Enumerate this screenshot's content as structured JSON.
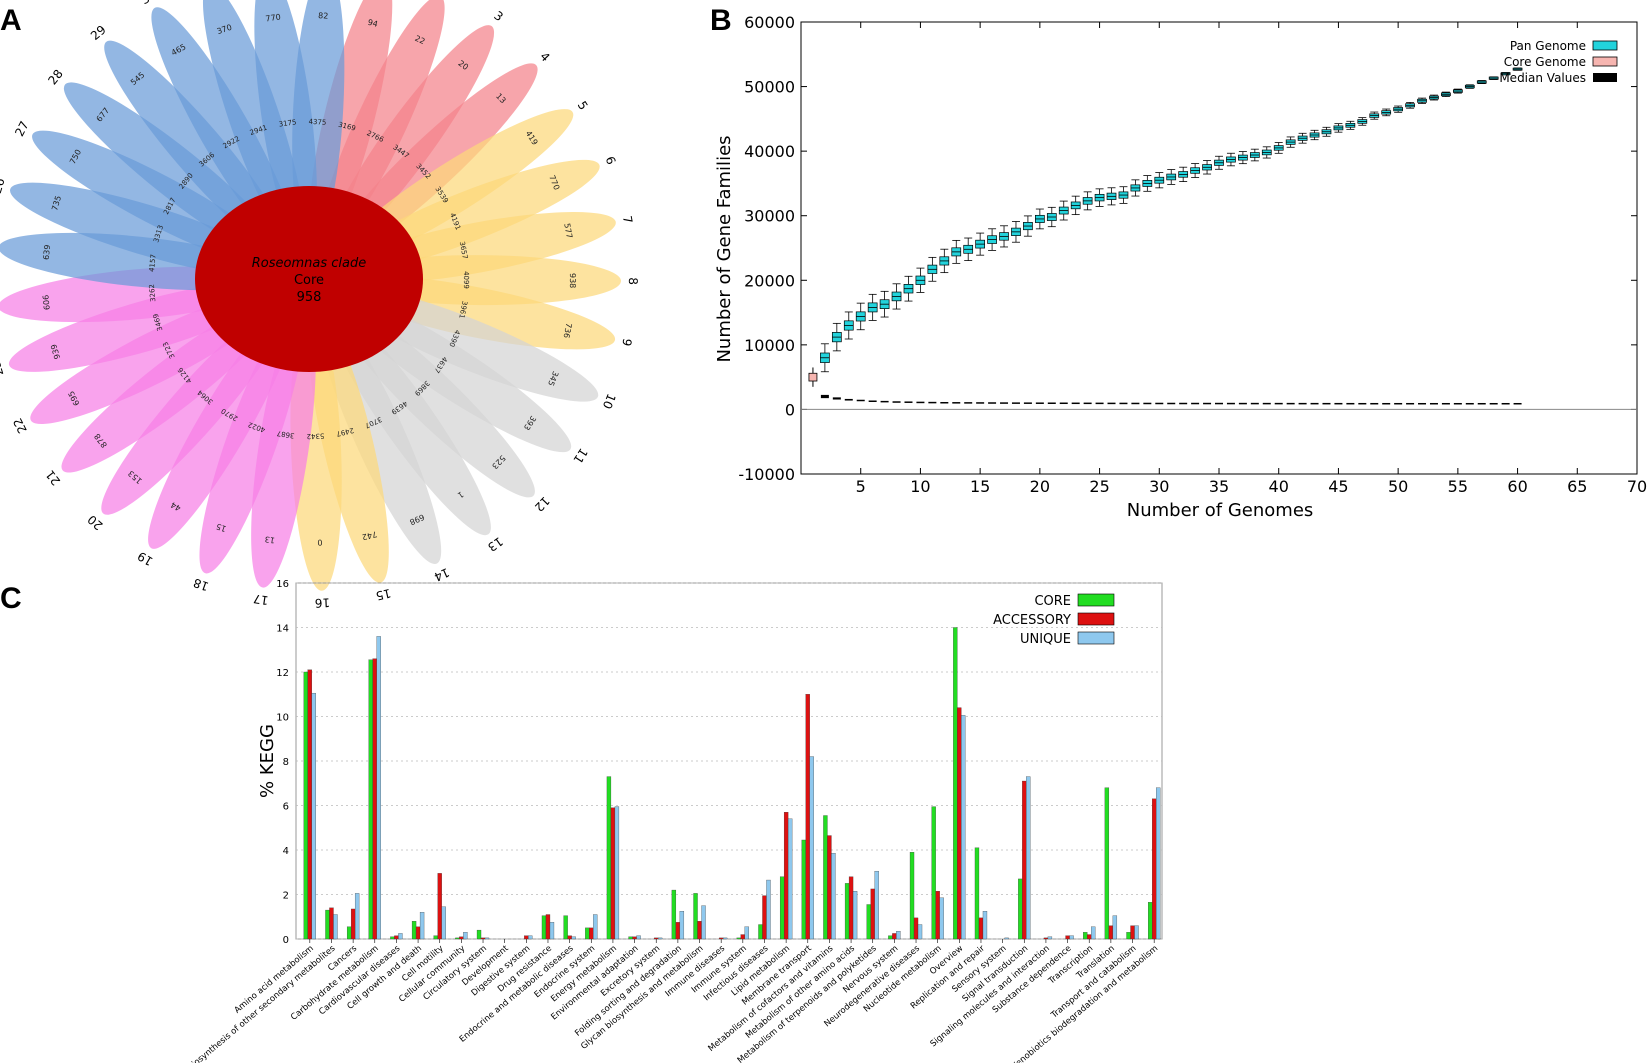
{
  "panel_labels": {
    "a": "A",
    "b": "B",
    "c": "C"
  },
  "colors": {
    "blue": "#6a9bd8",
    "pink": "#f77fe6",
    "yellow": "#fcd87a",
    "gray": "#d4d4d4",
    "salmon": "#f4828a",
    "core_red": "#c00000",
    "pan": "#22d3dc",
    "core_genome": "#f6b5b0",
    "median": "#000000",
    "bar_core": "#22dd22",
    "bar_accessory": "#dd1111",
    "bar_unique": "#8ec8ee"
  },
  "chart_data": [
    {
      "type": "flower",
      "center": {
        "line1": "Roseomnas clade",
        "line2": "Core",
        "line3": "958"
      },
      "petals": [
        {
          "id": "1",
          "unique": "94",
          "accessory": "3169",
          "color": "salmon"
        },
        {
          "id": "2",
          "unique": "22",
          "accessory": "2766",
          "color": "salmon"
        },
        {
          "id": "3",
          "unique": "20",
          "accessory": "3447",
          "color": "salmon"
        },
        {
          "id": "4",
          "unique": "13",
          "accessory": "3452",
          "color": "salmon"
        },
        {
          "id": "5",
          "unique": "419",
          "accessory": "3539",
          "color": "yellow"
        },
        {
          "id": "6",
          "unique": "770",
          "accessory": "4191",
          "color": "yellow"
        },
        {
          "id": "7",
          "unique": "577",
          "accessory": "3657",
          "color": "yellow"
        },
        {
          "id": "8",
          "unique": "938",
          "accessory": "4099",
          "color": "yellow"
        },
        {
          "id": "9",
          "unique": "736",
          "accessory": "3961",
          "color": "yellow"
        },
        {
          "id": "10",
          "unique": "345",
          "accessory": "4390",
          "color": "gray"
        },
        {
          "id": "11",
          "unique": "393",
          "accessory": "4637",
          "color": "gray"
        },
        {
          "id": "12",
          "unique": "523",
          "accessory": "3869",
          "color": "gray"
        },
        {
          "id": "13",
          "unique": "1",
          "accessory": "4639",
          "color": "gray"
        },
        {
          "id": "14",
          "unique": "698",
          "accessory": "3707",
          "color": "gray"
        },
        {
          "id": "15",
          "unique": "742",
          "accessory": "2497",
          "color": "yellow"
        },
        {
          "id": "16",
          "unique": "0",
          "accessory": "5342",
          "color": "yellow"
        },
        {
          "id": "17",
          "unique": "13",
          "accessory": "3687",
          "color": "pink"
        },
        {
          "id": "18",
          "unique": "15",
          "accessory": "4022",
          "color": "pink"
        },
        {
          "id": "19",
          "unique": "44",
          "accessory": "2970",
          "color": "pink"
        },
        {
          "id": "20",
          "unique": "153",
          "accessory": "3064",
          "color": "pink"
        },
        {
          "id": "21",
          "unique": "878",
          "accessory": "4126",
          "color": "pink"
        },
        {
          "id": "22",
          "unique": "695",
          "accessory": "3723",
          "color": "pink"
        },
        {
          "id": "23",
          "unique": "939",
          "accessory": "3469",
          "color": "pink"
        },
        {
          "id": "24",
          "unique": "606",
          "accessory": "3262",
          "color": "pink"
        },
        {
          "id": "25",
          "unique": "639",
          "accessory": "4157",
          "color": "blue"
        },
        {
          "id": "26",
          "unique": "735",
          "accessory": "3313",
          "color": "blue"
        },
        {
          "id": "27",
          "unique": "750",
          "accessory": "2817",
          "color": "blue"
        },
        {
          "id": "28",
          "unique": "677",
          "accessory": "2890",
          "color": "blue"
        },
        {
          "id": "29",
          "unique": "545",
          "accessory": "3606",
          "color": "blue"
        },
        {
          "id": "30",
          "unique": "465",
          "accessory": "2922",
          "color": "blue"
        },
        {
          "id": "31",
          "unique": "370",
          "accessory": "2941",
          "color": "blue"
        },
        {
          "id": "32",
          "unique": "770",
          "accessory": "3175",
          "color": "blue"
        },
        {
          "id": "33",
          "unique": "82",
          "accessory": "4375",
          "color": "blue"
        }
      ]
    },
    {
      "type": "boxplot",
      "xlabel": "Number of Genomes",
      "ylabel": "Number of Gene Families",
      "xlim": [
        0,
        70
      ],
      "ylim": [
        -10000,
        60000
      ],
      "xticks": [
        "5",
        "10",
        "15",
        "20",
        "25",
        "30",
        "35",
        "40",
        "45",
        "50",
        "55",
        "60",
        "65",
        "70"
      ],
      "yticks": [
        "60000",
        "50000",
        "40000",
        "30000",
        "20000",
        "10000",
        "0",
        "-10000"
      ],
      "legend": [
        "Pan Genome",
        "Core Genome",
        "Median Values"
      ],
      "x": [
        1,
        2,
        3,
        4,
        5,
        6,
        7,
        8,
        9,
        10,
        11,
        12,
        13,
        14,
        15,
        16,
        17,
        18,
        19,
        20,
        21,
        22,
        23,
        24,
        25,
        26,
        27,
        28,
        29,
        30,
        31,
        32,
        33,
        34,
        35,
        36,
        37,
        38,
        39,
        40,
        41,
        42,
        43,
        44,
        45,
        46,
        47,
        48,
        49,
        50,
        51,
        52,
        53,
        54,
        55,
        56,
        57,
        58,
        59,
        60
      ],
      "pan_median": [
        5000,
        8000,
        11200,
        13000,
        14400,
        15800,
        16300,
        17500,
        18700,
        20000,
        21700,
        23000,
        24400,
        24800,
        25600,
        26300,
        26800,
        27500,
        28400,
        29500,
        29800,
        30800,
        31600,
        32300,
        32800,
        33000,
        33200,
        34300,
        35000,
        35500,
        36000,
        36400,
        37000,
        37500,
        38200,
        38700,
        39000,
        39400,
        39800,
        40500,
        41400,
        42000,
        42500,
        43000,
        43600,
        44000,
        44600,
        45500,
        46000,
        46500,
        47100,
        47800,
        48300,
        48800,
        49300,
        50000,
        50700,
        51300,
        52000,
        52700
      ],
      "core_median": [
        5000,
        2000,
        1700,
        1500,
        1400,
        1300,
        1250,
        1200,
        1180,
        1150,
        1130,
        1110,
        1100,
        1090,
        1080,
        1070,
        1060,
        1050,
        1045,
        1040,
        1035,
        1030,
        1025,
        1020,
        1015,
        1010,
        1005,
        1000,
        998,
        996,
        994,
        992,
        990,
        988,
        986,
        984,
        982,
        980,
        978,
        976,
        974,
        972,
        970,
        968,
        966,
        964,
        962,
        961,
        960,
        960,
        960,
        959,
        959,
        959,
        958,
        958,
        958,
        958,
        958,
        958
      ]
    },
    {
      "type": "bar",
      "ylabel": "% KEGG",
      "ylim": [
        0,
        16
      ],
      "yticks": [
        "0",
        "2",
        "4",
        "6",
        "8",
        "10",
        "12",
        "14",
        "16"
      ],
      "categories": [
        "Amino acid metabolism",
        "Biosynthesis of other secondary metabolites",
        "Cancers",
        "Carbohydrate metabolism",
        "Cardiovascular diseases",
        "Cell growth and death",
        "Cell motility",
        "Cellular community",
        "Circulatory system",
        "Development",
        "Digestive system",
        "Drug resistance",
        "Endocrine and metabolic diseases",
        "Endocrine system",
        "Energy metabolism",
        "Environmental adaptation",
        "Excretory system",
        "Folding sorting and degradation",
        "Glycan biosynthesis and metabolism",
        "Immune diseases",
        "Immune system",
        "Infectious diseases",
        "Lipid metabolism",
        "Membrane transport",
        "Metabolism of cofactors and vitamins",
        "Metabolism of other amino acids",
        "Metabolism of terpenoids and polyketides",
        "Nervous system",
        "Neurodegenerative diseases",
        "Nucleotide metabolism",
        "Overview",
        "Replication and repair",
        "Sensory system",
        "Signal transduction",
        "Signaling molecules and interaction",
        "Substance dependence",
        "Transcription",
        "Translation",
        "Transport and catabolism",
        "Xenobiotics biodegradation and metabolism"
      ],
      "series": [
        {
          "name": "CORE",
          "color": "bar_core",
          "values": [
            12.0,
            1.3,
            0.55,
            12.55,
            0.1,
            0.8,
            0.15,
            0.05,
            0.4,
            0.0,
            0.0,
            1.05,
            1.05,
            0.5,
            7.3,
            0.1,
            0.0,
            2.2,
            2.05,
            0.0,
            0.05,
            0.65,
            2.8,
            4.45,
            5.55,
            2.5,
            1.55,
            0.15,
            3.9,
            5.95,
            14.0,
            4.1,
            0.0,
            2.7,
            0.0,
            0.0,
            0.3,
            6.8,
            0.3,
            1.65
          ]
        },
        {
          "name": "ACCESSORY",
          "color": "bar_accessory",
          "values": [
            12.1,
            1.4,
            1.35,
            12.6,
            0.15,
            0.55,
            2.95,
            0.1,
            0.05,
            0.0,
            0.15,
            1.1,
            0.15,
            0.5,
            5.9,
            0.1,
            0.05,
            0.75,
            0.8,
            0.05,
            0.2,
            1.95,
            5.7,
            11.0,
            4.65,
            2.8,
            2.25,
            0.25,
            0.95,
            2.15,
            10.4,
            0.95,
            0.0,
            7.1,
            0.05,
            0.15,
            0.2,
            0.6,
            0.6,
            6.3
          ]
        },
        {
          "name": "UNIQUE",
          "color": "bar_unique",
          "values": [
            11.05,
            1.1,
            2.05,
            13.6,
            0.25,
            1.2,
            1.45,
            0.3,
            0.05,
            0.0,
            0.15,
            0.75,
            0.1,
            1.1,
            5.95,
            0.15,
            0.05,
            1.25,
            1.5,
            0.05,
            0.55,
            2.65,
            5.4,
            8.2,
            3.85,
            2.15,
            3.05,
            0.35,
            0.65,
            1.85,
            10.05,
            1.25,
            0.05,
            7.3,
            0.1,
            0.15,
            0.55,
            1.05,
            0.6,
            6.8
          ]
        }
      ]
    }
  ]
}
